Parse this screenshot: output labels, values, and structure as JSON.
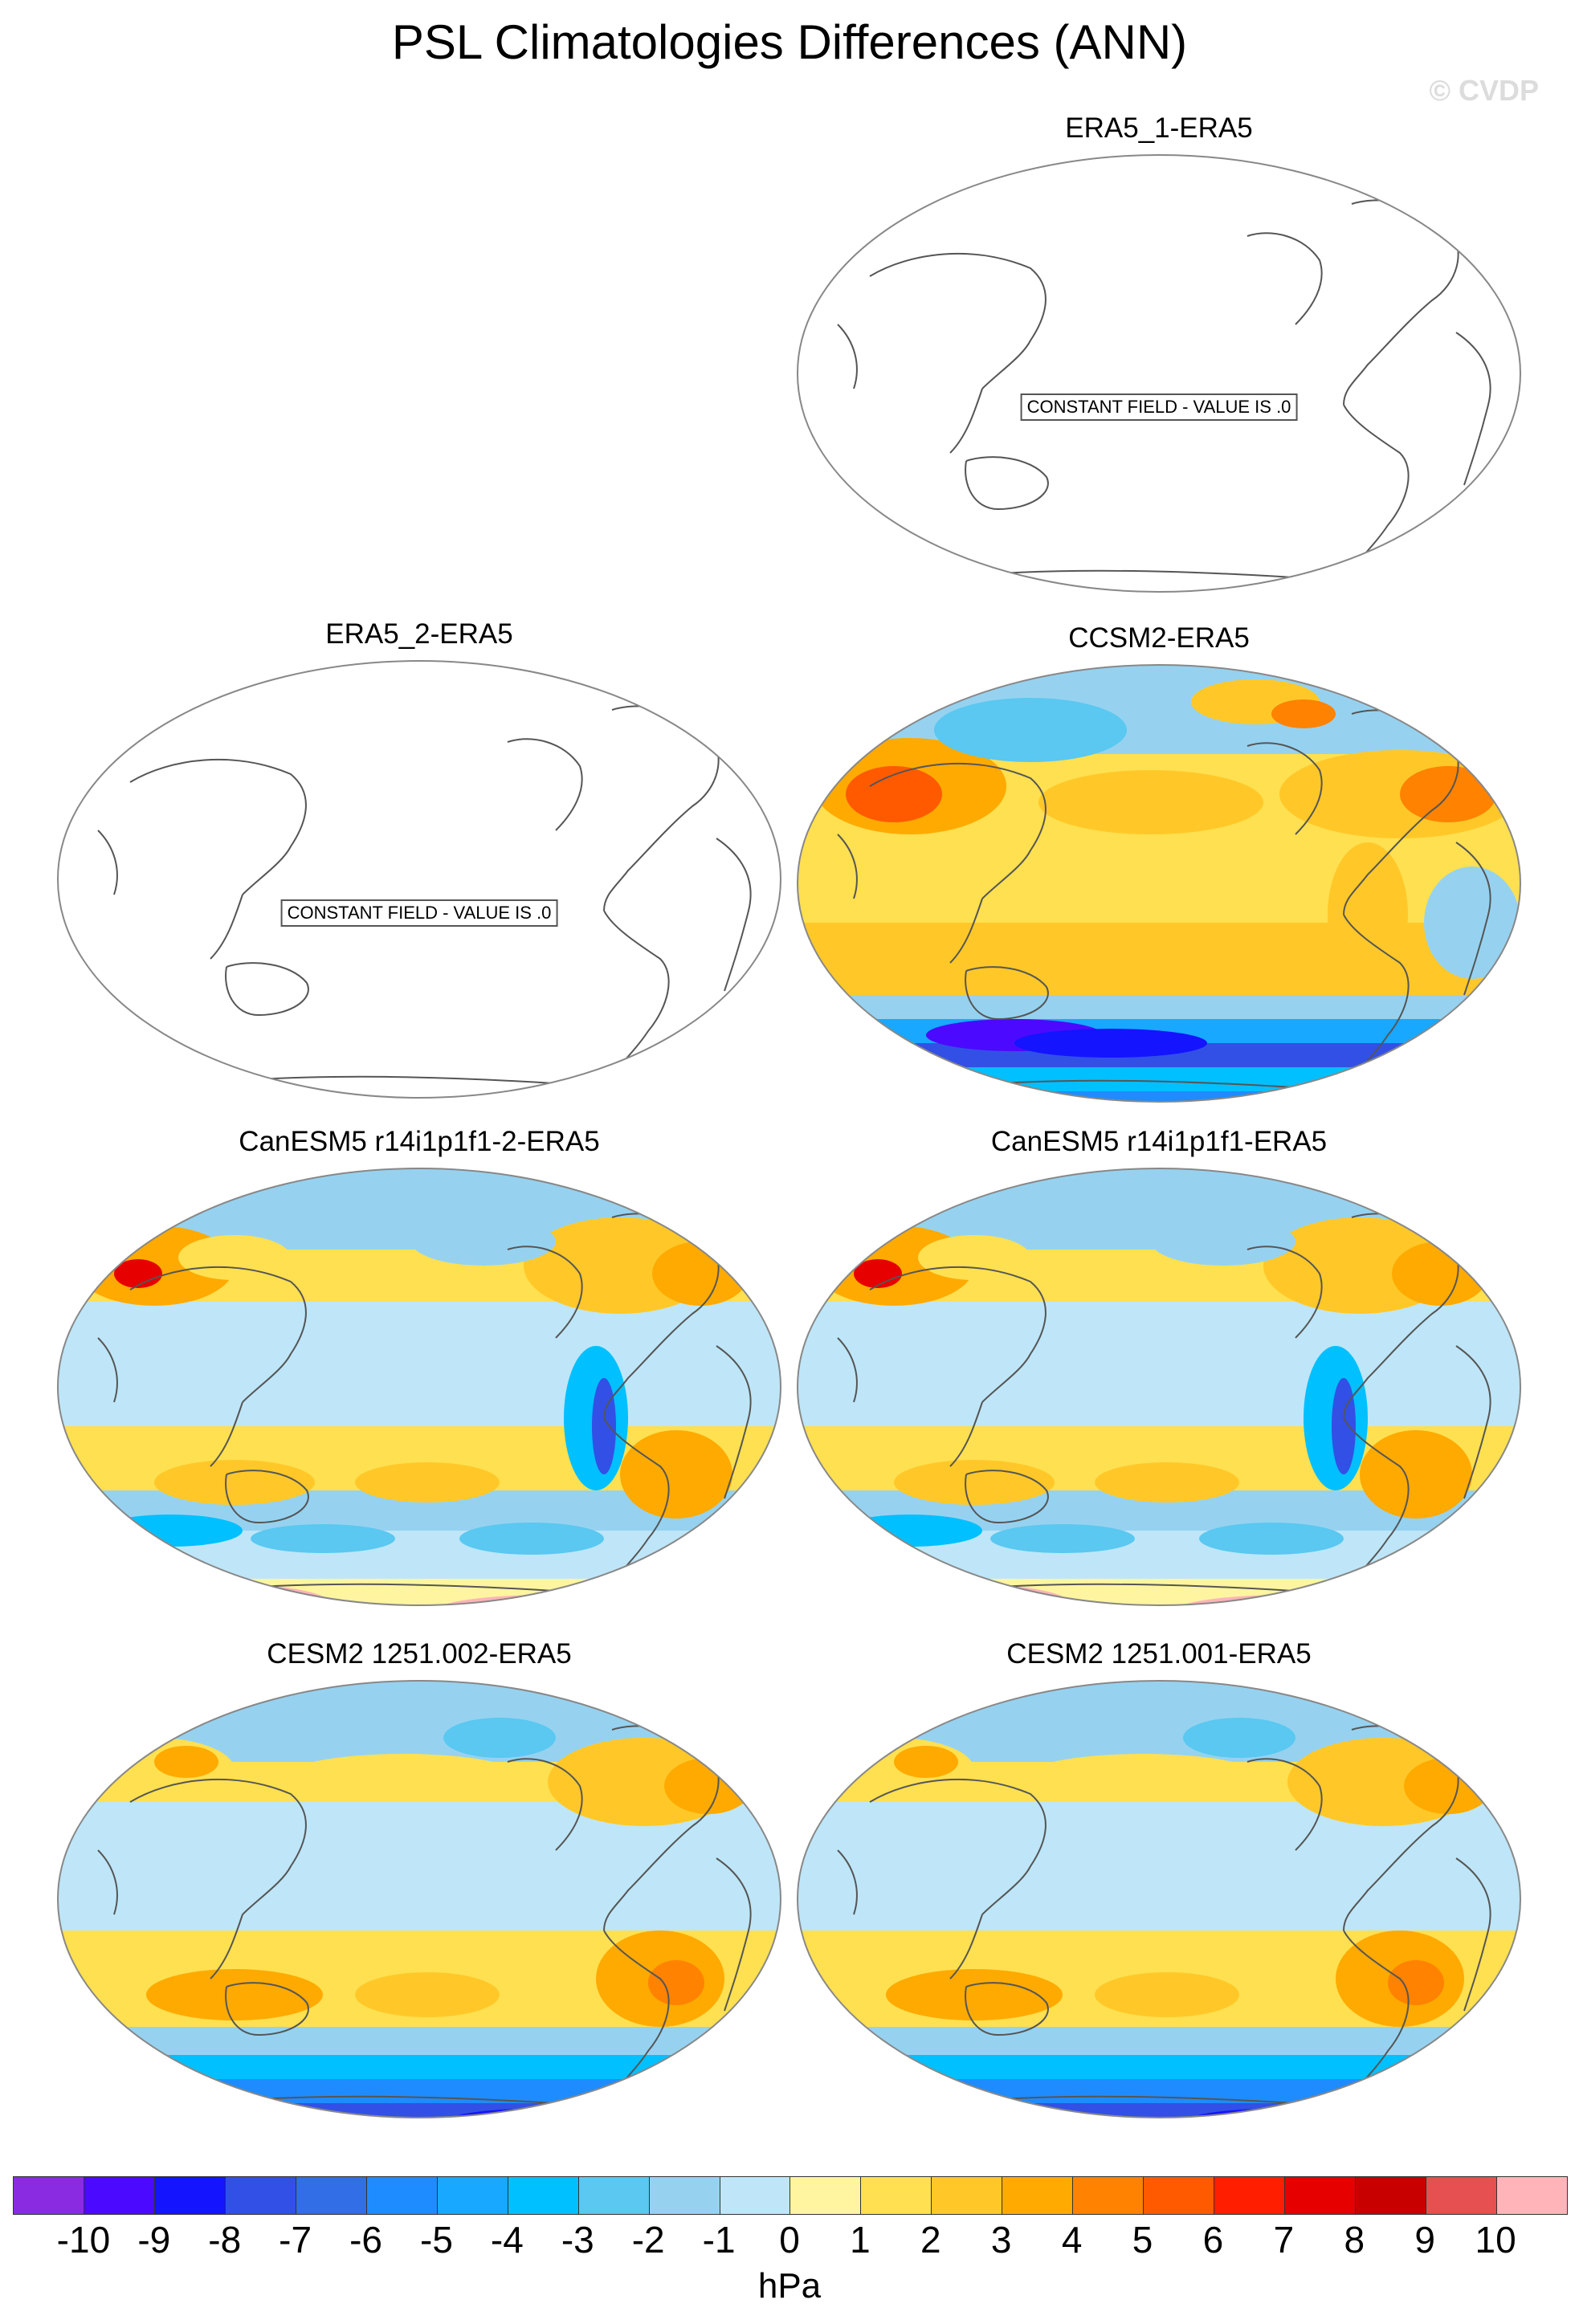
{
  "title": "PSL Climatologies Differences (ANN)",
  "watermark": "© CVDP",
  "chart_data": {
    "type": "heatmap",
    "projection": "Robinson",
    "units": "hPa",
    "levels": [
      -10,
      -9,
      -8,
      -7,
      -6,
      -5,
      -4,
      -3,
      -2,
      -1,
      0,
      1,
      2,
      3,
      4,
      5,
      6,
      7,
      8,
      9,
      10
    ],
    "colors": [
      "#8a2be2",
      "#4b0aff",
      "#1414ff",
      "#3250e6",
      "#326ee6",
      "#1e8cff",
      "#18a8ff",
      "#00c0ff",
      "#5ac8f0",
      "#96d2f0",
      "#bee6f8",
      "#fff5a0",
      "#ffe050",
      "#ffc828",
      "#ffaa00",
      "#ff8200",
      "#ff5a00",
      "#ff1e00",
      "#e60000",
      "#c80000",
      "#e65050",
      "#ffb4b9"
    ],
    "panels": [
      {
        "title": "ERA5_1-ERA5",
        "constant_label": "CONSTANT FIELD - VALUE IS .0",
        "style": "constant"
      },
      {
        "title": "ERA5_2-ERA5",
        "constant_label": "CONSTANT FIELD - VALUE IS .0",
        "style": "constant"
      },
      {
        "title": "CCSM2-ERA5",
        "style": "ccsm"
      },
      {
        "title": "CanESM5 r14i1p1f1-2-ERA5",
        "style": "canesm"
      },
      {
        "title": "CanESM5 r14i1p1f1-ERA5",
        "style": "canesm"
      },
      {
        "title": "CESM2 1251.002-ERA5",
        "style": "cesm"
      },
      {
        "title": "CESM2 1251.001-ERA5",
        "style": "cesm"
      }
    ]
  }
}
